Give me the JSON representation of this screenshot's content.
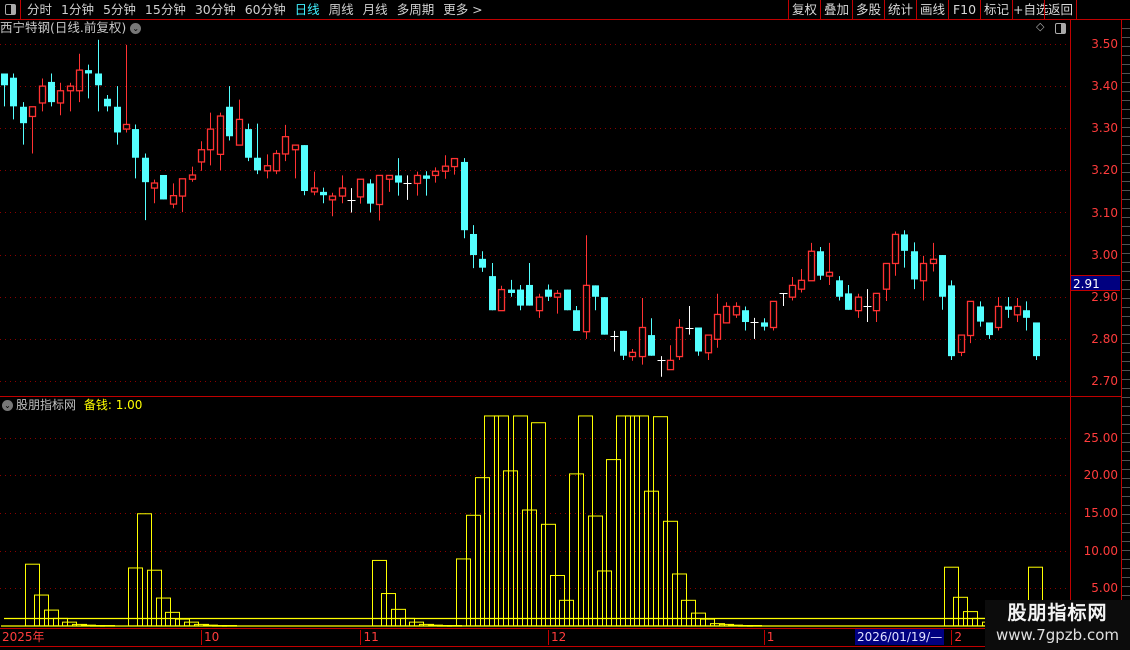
{
  "toolbar": {
    "tabs": [
      "分时",
      "1分钟",
      "5分钟",
      "15分钟",
      "30分钟",
      "60分钟",
      "日线",
      "周线",
      "月线",
      "多周期",
      "更多 >"
    ],
    "active_tab": "日线",
    "buttons": [
      "复权",
      "叠加",
      "多股",
      "统计",
      "画线",
      "F10",
      "标记",
      "+自选",
      "返回"
    ]
  },
  "chart": {
    "title": "西宁特钢(日线.前复权)",
    "price_axis": [
      "3.50",
      "3.40",
      "3.30",
      "3.20",
      "3.10",
      "3.00",
      "2.90",
      "2.80",
      "2.70"
    ],
    "price_ylim": [
      2.68,
      3.52
    ],
    "cursor_price": "2.91",
    "colors": {
      "up": "#ff3232",
      "down": "#54ffff",
      "flat": "#ffffff",
      "grid": "#8b0000",
      "axis": "#c00000"
    },
    "candles_ohlc": [
      [
        3.43,
        3.43,
        3.352,
        3.402
      ],
      [
        3.42,
        3.43,
        3.321,
        3.352
      ],
      [
        3.351,
        3.362,
        3.261,
        3.312
      ],
      [
        3.328,
        3.351,
        3.24,
        3.351
      ],
      [
        3.36,
        3.418,
        3.34,
        3.4
      ],
      [
        3.41,
        3.43,
        3.352,
        3.362
      ],
      [
        3.36,
        3.408,
        3.331,
        3.389
      ],
      [
        3.389,
        3.408,
        3.34,
        3.4
      ],
      [
        3.389,
        3.477,
        3.362,
        3.438
      ],
      [
        3.438,
        3.451,
        3.371,
        3.43
      ],
      [
        3.43,
        3.51,
        3.34,
        3.402
      ],
      [
        3.37,
        3.379,
        3.34,
        3.352
      ],
      [
        3.351,
        3.4,
        3.261,
        3.29
      ],
      [
        3.298,
        3.498,
        3.29,
        3.309
      ],
      [
        3.298,
        3.309,
        3.181,
        3.23
      ],
      [
        3.23,
        3.24,
        3.082,
        3.172
      ],
      [
        3.158,
        3.178,
        3.122,
        3.17
      ],
      [
        3.189,
        3.189,
        3.131,
        3.131
      ],
      [
        3.12,
        3.169,
        3.11,
        3.14
      ],
      [
        3.139,
        3.18,
        3.101,
        3.18
      ],
      [
        3.179,
        3.209,
        3.173,
        3.189
      ],
      [
        3.22,
        3.269,
        3.199,
        3.249
      ],
      [
        3.249,
        3.337,
        3.212,
        3.298
      ],
      [
        3.238,
        3.337,
        3.2,
        3.329
      ],
      [
        3.351,
        3.4,
        3.271,
        3.281
      ],
      [
        3.26,
        3.368,
        3.26,
        3.321
      ],
      [
        3.298,
        3.311,
        3.222,
        3.23
      ],
      [
        3.23,
        3.311,
        3.191,
        3.2
      ],
      [
        3.199,
        3.238,
        3.181,
        3.211
      ],
      [
        3.199,
        3.248,
        3.191,
        3.24
      ],
      [
        3.239,
        3.308,
        3.222,
        3.28
      ],
      [
        3.249,
        3.26,
        3.181,
        3.26
      ],
      [
        3.26,
        3.26,
        3.141,
        3.151
      ],
      [
        3.149,
        3.197,
        3.141,
        3.158
      ],
      [
        3.149,
        3.159,
        3.122,
        3.141
      ],
      [
        3.13,
        3.147,
        3.091,
        3.139
      ],
      [
        3.139,
        3.188,
        3.122,
        3.158
      ],
      [
        3.129,
        3.158,
        3.1,
        3.129
      ],
      [
        3.137,
        3.179,
        3.121,
        3.179
      ],
      [
        3.169,
        3.179,
        3.1,
        3.121
      ],
      [
        3.119,
        3.188,
        3.081,
        3.188
      ],
      [
        3.179,
        3.188,
        3.149,
        3.188
      ],
      [
        3.188,
        3.229,
        3.14,
        3.171
      ],
      [
        3.169,
        3.188,
        3.13,
        3.169
      ],
      [
        3.169,
        3.197,
        3.14,
        3.188
      ],
      [
        3.188,
        3.198,
        3.14,
        3.18
      ],
      [
        3.188,
        3.207,
        3.171,
        3.198
      ],
      [
        3.198,
        3.236,
        3.18,
        3.21
      ],
      [
        3.209,
        3.228,
        3.19,
        3.228
      ],
      [
        3.22,
        3.229,
        3.039,
        3.058
      ],
      [
        3.049,
        3.07,
        2.968,
        2.999
      ],
      [
        2.99,
        3.008,
        2.959,
        2.969
      ],
      [
        2.949,
        2.98,
        2.868,
        2.868
      ],
      [
        2.867,
        2.926,
        2.867,
        2.917
      ],
      [
        2.917,
        2.94,
        2.9,
        2.909
      ],
      [
        2.917,
        2.928,
        2.868,
        2.879
      ],
      [
        2.928,
        2.98,
        2.879,
        2.879
      ],
      [
        2.867,
        2.907,
        2.85,
        2.899
      ],
      [
        2.917,
        2.929,
        2.89,
        2.9
      ],
      [
        2.899,
        2.916,
        2.86,
        2.908
      ],
      [
        2.917,
        2.917,
        2.868,
        2.868
      ],
      [
        2.868,
        2.878,
        2.819,
        2.819
      ],
      [
        2.817,
        3.046,
        2.8,
        2.927
      ],
      [
        2.927,
        2.927,
        2.868,
        2.9
      ],
      [
        2.899,
        2.899,
        2.81,
        2.81
      ],
      [
        2.808,
        2.819,
        2.77,
        2.808
      ],
      [
        2.819,
        2.819,
        2.75,
        2.76
      ],
      [
        2.758,
        2.776,
        2.748,
        2.768
      ],
      [
        2.758,
        2.897,
        2.739,
        2.827
      ],
      [
        2.809,
        2.849,
        2.76,
        2.76
      ],
      [
        2.749,
        2.759,
        2.71,
        2.749
      ],
      [
        2.727,
        2.785,
        2.727,
        2.749
      ],
      [
        2.758,
        2.847,
        2.75,
        2.827
      ],
      [
        2.827,
        2.878,
        2.81,
        2.827
      ],
      [
        2.827,
        2.827,
        2.76,
        2.77
      ],
      [
        2.767,
        2.809,
        2.75,
        2.809
      ],
      [
        2.799,
        2.907,
        2.779,
        2.858
      ],
      [
        2.838,
        2.887,
        2.838,
        2.877
      ],
      [
        2.857,
        2.887,
        2.85,
        2.877
      ],
      [
        2.868,
        2.877,
        2.82,
        2.84
      ],
      [
        2.839,
        2.85,
        2.8,
        2.839
      ],
      [
        2.839,
        2.849,
        2.82,
        2.829
      ],
      [
        2.827,
        2.889,
        2.82,
        2.889
      ],
      [
        2.908,
        2.908,
        2.878,
        2.908
      ],
      [
        2.899,
        2.947,
        2.891,
        2.927
      ],
      [
        2.918,
        2.966,
        2.91,
        2.939
      ],
      [
        2.938,
        3.028,
        2.938,
        3.008
      ],
      [
        3.008,
        3.018,
        2.94,
        2.95
      ],
      [
        2.949,
        3.028,
        2.928,
        2.958
      ],
      [
        2.939,
        2.949,
        2.891,
        2.9
      ],
      [
        2.908,
        2.928,
        2.869,
        2.869
      ],
      [
        2.867,
        2.907,
        2.85,
        2.899
      ],
      [
        2.877,
        2.918,
        2.84,
        2.877
      ],
      [
        2.867,
        2.908,
        2.84,
        2.908
      ],
      [
        2.918,
        2.979,
        2.89,
        2.979
      ],
      [
        2.979,
        3.055,
        2.95,
        3.048
      ],
      [
        3.048,
        3.058,
        2.969,
        3.009
      ],
      [
        3.008,
        3.029,
        2.918,
        2.941
      ],
      [
        2.938,
        2.997,
        2.891,
        2.979
      ],
      [
        2.979,
        3.028,
        2.96,
        2.989
      ],
      [
        2.999,
        2.999,
        2.869,
        2.9
      ],
      [
        2.927,
        2.939,
        2.75,
        2.759
      ],
      [
        2.768,
        2.809,
        2.759,
        2.809
      ],
      [
        2.808,
        2.889,
        2.79,
        2.889
      ],
      [
        2.877,
        2.889,
        2.829,
        2.841
      ],
      [
        2.839,
        2.839,
        2.8,
        2.809
      ],
      [
        2.827,
        2.899,
        2.82,
        2.877
      ],
      [
        2.877,
        2.899,
        2.85,
        2.869
      ],
      [
        2.857,
        2.897,
        2.84,
        2.877
      ],
      [
        2.868,
        2.889,
        2.82,
        2.85
      ],
      [
        2.839,
        2.839,
        2.75,
        2.759
      ]
    ]
  },
  "indicator": {
    "name": "股朋指标网",
    "line_label": "备钱: 1.00",
    "line_value": 1.0,
    "axis": [
      "25.00",
      "20.00",
      "15.00",
      "10.00",
      "5.00"
    ],
    "ylim": [
      0,
      30.4
    ],
    "color": "#ffff00",
    "values": [
      0,
      0,
      8.2,
      4.1,
      2.1,
      1.0,
      0.5,
      0.2,
      0.1,
      0.05,
      0.05,
      0,
      0,
      7.7,
      14.9,
      7.4,
      3.7,
      1.8,
      0.9,
      0.5,
      0.2,
      0.1,
      0.05,
      0.05,
      0,
      0,
      0,
      0,
      0,
      0,
      0,
      0,
      0,
      0,
      0,
      0,
      0,
      0,
      0,
      8.7,
      4.3,
      2.2,
      1.0,
      0.5,
      0.2,
      0.1,
      0.05,
      0.05,
      8.9,
      14.7,
      19.7,
      27.9,
      27.9,
      20.6,
      27.9,
      15.4,
      27.0,
      13.5,
      6.7,
      3.4,
      20.2,
      27.9,
      14.6,
      7.3,
      22.1,
      27.9,
      27.9,
      27.9,
      17.9,
      27.8,
      13.9,
      6.9,
      3.4,
      1.7,
      0.9,
      0.3,
      0.2,
      0.1,
      0.05,
      0.05,
      0,
      0,
      0,
      0,
      0,
      0,
      0,
      0,
      0,
      0,
      0,
      0,
      0,
      0,
      0,
      0,
      0,
      0,
      0,
      0,
      7.8,
      3.8,
      1.9,
      1.0,
      0.5,
      0,
      0,
      0,
      0,
      7.8,
      0
    ]
  },
  "date_axis": {
    "labels": [
      {
        "text": "2025年",
        "index": 0
      },
      {
        "text": "10",
        "index": 21
      },
      {
        "text": "11",
        "index": 38
      },
      {
        "text": "12",
        "index": 58
      },
      {
        "text": "1",
        "index": 81
      },
      {
        "text": "2",
        "index": 101
      }
    ],
    "cursor_date": "2026/01/19/—"
  },
  "watermark": {
    "line1": "股朋指标网",
    "line2": "www.7gpzb.com"
  }
}
